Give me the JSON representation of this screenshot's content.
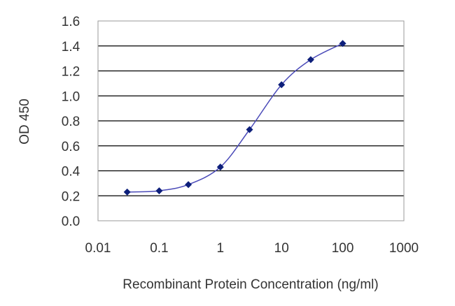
{
  "chart_data": {
    "type": "line",
    "title": "",
    "xlabel": "Recombinant Protein Concentration (ng/ml)",
    "ylabel": "OD 450",
    "x_scale": "log",
    "xlim": [
      0.01,
      1000
    ],
    "ylim": [
      0.0,
      1.6
    ],
    "x_ticks": [
      "0.01",
      "0.1",
      "1",
      "10",
      "100",
      "1000"
    ],
    "y_ticks": [
      "0.0",
      "0.2",
      "0.4",
      "0.6",
      "0.8",
      "1.0",
      "1.2",
      "1.4",
      "1.6"
    ],
    "grid": {
      "horizontal": true,
      "vertical": false
    },
    "legend": "none",
    "series": [
      {
        "x": [
          0.03,
          0.1,
          0.3,
          1,
          3,
          10,
          30,
          100
        ],
        "y": [
          0.23,
          0.24,
          0.29,
          0.43,
          0.73,
          1.09,
          1.29,
          1.42
        ]
      }
    ],
    "colors": {
      "line": "#4a4ab8",
      "marker": "#0d1f7a",
      "grid": "#000000",
      "frame": "#999999"
    }
  }
}
